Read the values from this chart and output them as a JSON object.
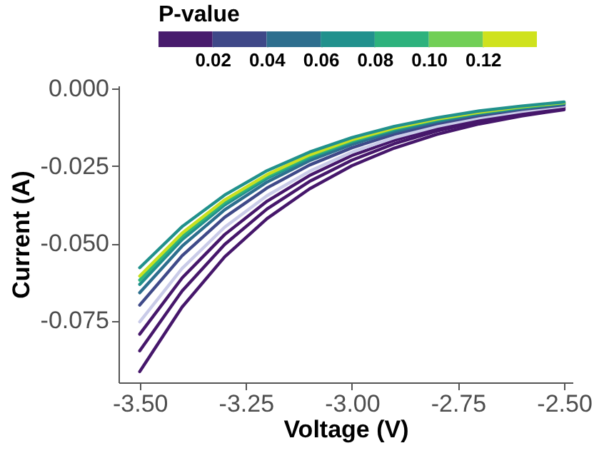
{
  "chart_data": {
    "type": "line",
    "xlabel": "Voltage (V)",
    "ylabel": "Current (A)",
    "clabel": "P-value",
    "clim": [
      0,
      0.14
    ],
    "cticks": [
      {
        "value": 0.02,
        "label": "0.02"
      },
      {
        "value": 0.04,
        "label": "0.04"
      },
      {
        "value": 0.06,
        "label": "0.06"
      },
      {
        "value": 0.08,
        "label": "0.08"
      },
      {
        "value": 0.1,
        "label": "0.10"
      },
      {
        "value": 0.12,
        "label": "0.12"
      }
    ],
    "x": [
      -3.5,
      -3.4,
      -3.3,
      -3.2,
      -3.1,
      -3.0,
      -2.9,
      -2.8,
      -2.7,
      -2.6,
      -2.5
    ],
    "xlim": [
      -3.55,
      -2.48
    ],
    "xticks": [
      {
        "value": -3.5,
        "label": "-3.50"
      },
      {
        "value": -3.25,
        "label": "-3.25"
      },
      {
        "value": -3.0,
        "label": "-3.00"
      },
      {
        "value": -2.75,
        "label": "-2.75"
      },
      {
        "value": -2.5,
        "label": "-2.50"
      }
    ],
    "ylim": [
      -0.095,
      0.001
    ],
    "yticks": [
      {
        "value": -0.075,
        "label": "-0.075"
      },
      {
        "value": -0.05,
        "label": "-0.050"
      },
      {
        "value": -0.025,
        "label": "-0.025"
      },
      {
        "value": 0,
        "label": "0.000"
      }
    ],
    "grid": false,
    "series": [
      {
        "color": "#46176b",
        "values": [
          -0.0915,
          -0.0706,
          -0.0544,
          -0.042,
          -0.0324,
          -0.0249,
          -0.0192,
          -0.0148,
          -0.0114,
          -0.0088,
          -0.0068
        ]
      },
      {
        "color": "#46176b",
        "values": [
          -0.0848,
          -0.0654,
          -0.0504,
          -0.0389,
          -0.03,
          -0.0231,
          -0.0178,
          -0.0137,
          -0.0106,
          -0.0082,
          -0.0063
        ]
      },
      {
        "color": "#46176b",
        "values": [
          -0.0794,
          -0.0612,
          -0.0472,
          -0.0364,
          -0.0281,
          -0.0216,
          -0.0167,
          -0.0129,
          -0.0099,
          -0.0077,
          -0.0059
        ]
      },
      {
        "color": "#c9cbe8",
        "values": [
          -0.0754,
          -0.0581,
          -0.0448,
          -0.0346,
          -0.0267,
          -0.0205,
          -0.0158,
          -0.0122,
          -0.0094,
          -0.0073,
          -0.0056
        ]
      },
      {
        "color": "#3f4a89",
        "values": [
          -0.07,
          -0.054,
          -0.0416,
          -0.0321,
          -0.0247,
          -0.0191,
          -0.0147,
          -0.0113,
          -0.0087,
          -0.0067,
          -0.0052
        ]
      },
      {
        "color": "#2d6f8e",
        "values": [
          -0.066,
          -0.0509,
          -0.0392,
          -0.0302,
          -0.0233,
          -0.018,
          -0.0139,
          -0.0107,
          -0.0082,
          -0.0064,
          -0.0049
        ]
      },
      {
        "color": "#21918c",
        "values": [
          -0.0633,
          -0.0488,
          -0.0376,
          -0.029,
          -0.0224,
          -0.0172,
          -0.0133,
          -0.0103,
          -0.0079,
          -0.0061,
          -0.0047
        ]
      },
      {
        "color": "#2fb47c",
        "values": [
          -0.0619,
          -0.0477,
          -0.0368,
          -0.0284,
          -0.0219,
          -0.0169,
          -0.013,
          -0.01,
          -0.0077,
          -0.006,
          -0.0046
        ]
      },
      {
        "color": "#c8e020",
        "values": [
          -0.0606,
          -0.0467,
          -0.036,
          -0.0278,
          -0.0214,
          -0.0165,
          -0.0127,
          -0.0098,
          -0.0076,
          -0.0058,
          -0.0045
        ]
      },
      {
        "color": "#21918c",
        "values": [
          -0.0579,
          -0.0446,
          -0.0344,
          -0.0265,
          -0.0205,
          -0.0158,
          -0.0122,
          -0.0094,
          -0.0072,
          -0.0056,
          -0.0043
        ]
      }
    ]
  }
}
